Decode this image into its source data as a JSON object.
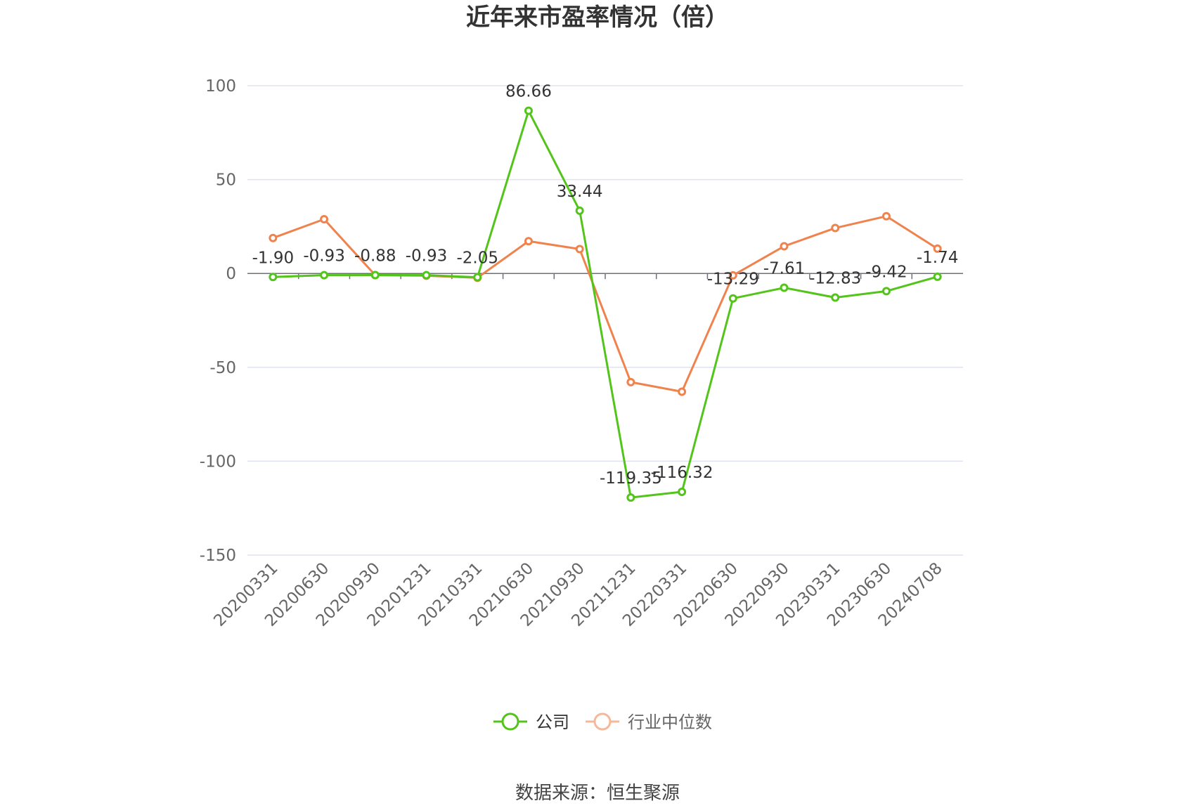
{
  "chart_data": {
    "type": "line",
    "title": "近年来市盈率情况（倍）",
    "categories": [
      "20200331",
      "20200630",
      "20200930",
      "20201231",
      "20210331",
      "20210630",
      "20210930",
      "20211231",
      "20220331",
      "20220630",
      "20220930",
      "20230331",
      "20230630",
      "20240708"
    ],
    "series": [
      {
        "name": "公司",
        "color": "#52c41a",
        "values": [
          -1.9,
          -0.93,
          -0.88,
          -0.93,
          -2.05,
          86.66,
          33.44,
          -119.35,
          -116.32,
          -13.29,
          -7.61,
          -12.83,
          -9.42,
          -1.74
        ],
        "labels": [
          "-1.90",
          "-0.93",
          "-0.88",
          "-0.93",
          "-2.05",
          "86.66",
          "33.44",
          "-119.35",
          "-116.32",
          "-13.29",
          "-7.61",
          "-12.83",
          "-9.42",
          "-1.74"
        ]
      },
      {
        "name": "行业中位数",
        "color": "#f0834d",
        "values": [
          18.9,
          28.9,
          -0.9,
          -1.2,
          -2.3,
          17.2,
          13.0,
          -57.9,
          -63.0,
          -1.0,
          14.5,
          24.2,
          30.5,
          13.2
        ]
      }
    ],
    "ylim": [
      -150,
      100
    ],
    "yticks": [
      100,
      50,
      0,
      -50,
      -100,
      -150
    ],
    "grid": true,
    "legend_position": "bottom-center"
  },
  "source_text": "数据来源：恒生聚源"
}
